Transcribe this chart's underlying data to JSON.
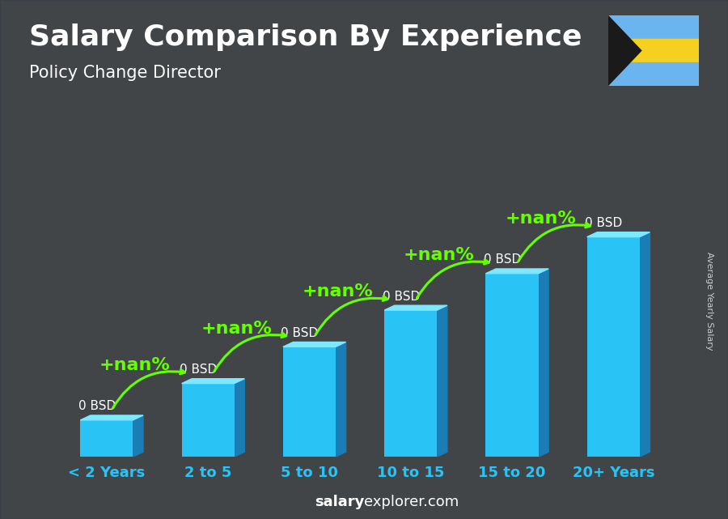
{
  "title": "Salary Comparison By Experience",
  "subtitle": "Policy Change Director",
  "ylabel": "Average Yearly Salary",
  "xlabel_categories": [
    "< 2 Years",
    "2 to 5",
    "5 to 10",
    "10 to 15",
    "15 to 20",
    "20+ Years"
  ],
  "bar_heights": [
    1,
    2,
    3,
    4,
    5,
    6
  ],
  "bar_front_color": "#29c4f5",
  "bar_side_color": "#1a7db5",
  "bar_top_color": "#7de8ff",
  "bar_values": [
    "0 BSD",
    "0 BSD",
    "0 BSD",
    "0 BSD",
    "0 BSD",
    "0 BSD"
  ],
  "annotations": [
    "+nan%",
    "+nan%",
    "+nan%",
    "+nan%",
    "+nan%"
  ],
  "annotation_color": "#66ff00",
  "title_color": "#ffffff",
  "subtitle_color": "#ffffff",
  "tick_color": "#29c4f5",
  "value_label_color": "#ffffff",
  "bg_color": "#3a4a55",
  "footer_bold": "salary",
  "footer_normal": "explorer.com",
  "flag_blue": "#6ab4f0",
  "flag_yellow": "#f5d020",
  "flag_black": "#1a1a1a",
  "title_fontsize": 26,
  "subtitle_fontsize": 15,
  "annot_fontsize": 16,
  "value_fontsize": 11,
  "tick_fontsize": 13,
  "footer_fontsize": 13,
  "ylabel_fontsize": 8
}
